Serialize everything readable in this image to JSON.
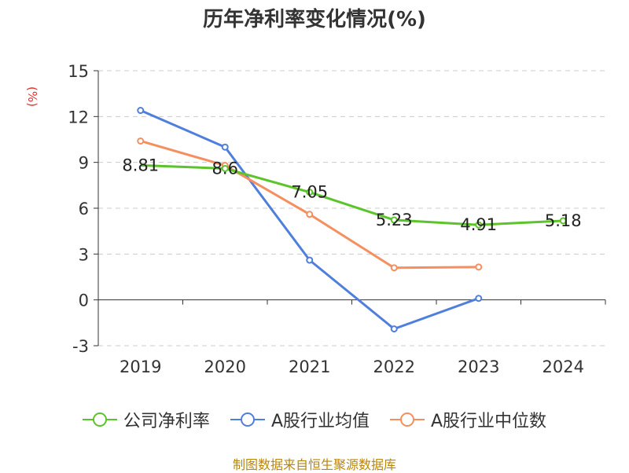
{
  "title": "历年净利率变化情况(%)",
  "source": "制图数据来自恒生聚源数据库",
  "chart_data": {
    "type": "line",
    "title": "历年净利率变化情况(%)",
    "ylabel": "(%)",
    "xlabel": "",
    "categories": [
      "2019",
      "2020",
      "2021",
      "2022",
      "2023",
      "2024"
    ],
    "yticks": [
      15,
      12,
      9,
      6,
      3,
      0,
      -3
    ],
    "ylim": [
      -3,
      15
    ],
    "grid": true,
    "legend_position": "bottom",
    "series": [
      {
        "name": "公司净利率",
        "color": "#5bc42a",
        "values": [
          8.81,
          8.6,
          7.05,
          5.23,
          4.91,
          5.18
        ],
        "labels": [
          "8.81",
          "8.6",
          "7.05",
          "5.23",
          "4.91",
          "5.18"
        ]
      },
      {
        "name": "A股行业均值",
        "color": "#4f7fdc",
        "values": [
          12.4,
          10.0,
          2.6,
          -1.9,
          0.1,
          null
        ]
      },
      {
        "name": "A股行业中位数",
        "color": "#f58f5e",
        "values": [
          10.4,
          8.8,
          5.6,
          2.1,
          2.15,
          null
        ]
      }
    ]
  }
}
